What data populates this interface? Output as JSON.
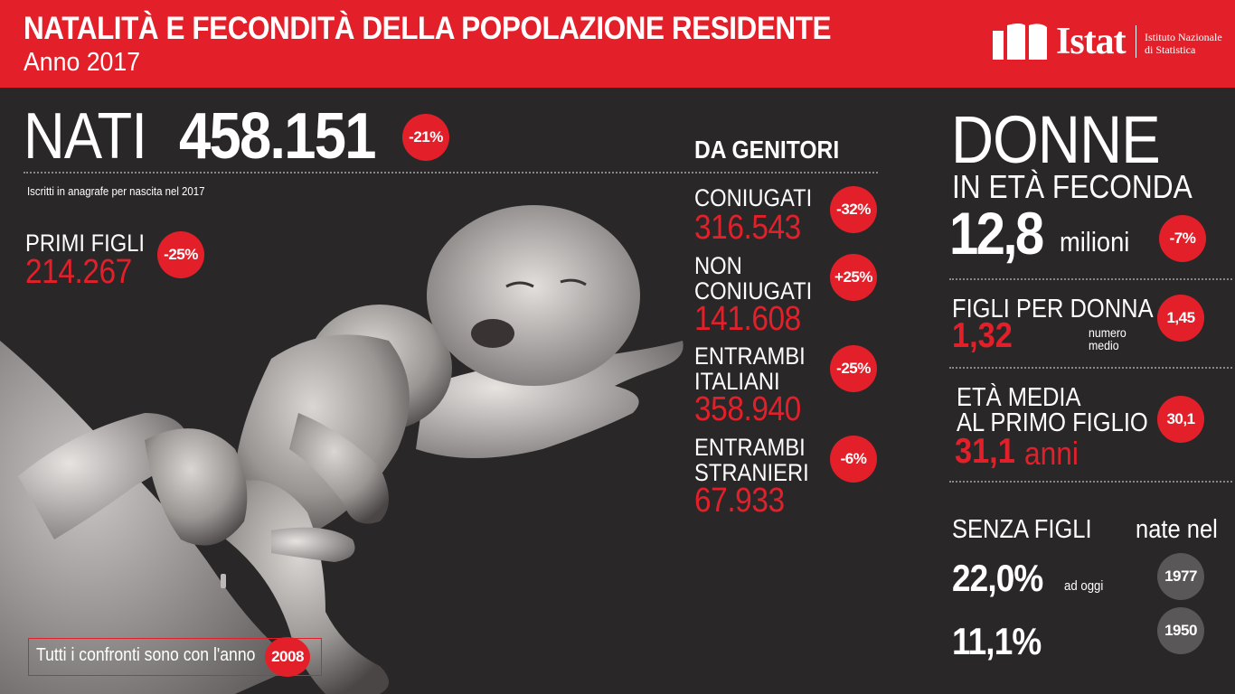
{
  "header": {
    "title": "NATALITÀ E FECONDITÀ DELLA POPOLAZIONE RESIDENTE",
    "subtitle": "Anno 2017"
  },
  "logo": {
    "wordmark": "Istat",
    "name_line1": "Istituto Nazionale",
    "name_line2": "di Statistica"
  },
  "nati": {
    "word": "NATI",
    "value": "458.151",
    "change": "-21%",
    "note": "Iscritti in anagrafe per nascita nel 2017"
  },
  "primi_figli": {
    "label": "PRIMI FIGLI",
    "value": "214.267",
    "change": "-25%"
  },
  "genitori": {
    "title": "DA GENITORI",
    "items": [
      {
        "label_1": "CONIUGATI",
        "label_2": "",
        "value": "316.543",
        "change": "-32%"
      },
      {
        "label_1": "NON",
        "label_2": "CONIUGATI",
        "value": "141.608",
        "change": "+25%"
      },
      {
        "label_1": "ENTRAMBI",
        "label_2": "ITALIANI",
        "value": "358.940",
        "change": "-25%"
      },
      {
        "label_1": "ENTRAMBI",
        "label_2": "STRANIERI",
        "value": "67.933",
        "change": "-6%"
      }
    ]
  },
  "donne": {
    "word": "DONNE",
    "subtitle": "IN ETÀ FECONDA",
    "value": "12,8",
    "unit": "milioni",
    "change": "-7%"
  },
  "figli_per_donna": {
    "label": "FIGLI PER DONNA",
    "value": "1,32",
    "note_1": "numero",
    "note_2": "medio",
    "compare": "1,45"
  },
  "eta_media": {
    "label_1": "ETÀ MEDIA",
    "label_2": "AL PRIMO FIGLIO",
    "value": "31,1",
    "unit": "anni",
    "compare": "30,1"
  },
  "senza_figli": {
    "label": "SENZA FIGLI",
    "nate_nel": "nate nel",
    "rows": [
      {
        "value": "22,0%",
        "note": "ad oggi",
        "year": "1977"
      },
      {
        "value": "11,1%",
        "note": "",
        "year": "1950"
      }
    ]
  },
  "footer": {
    "text": "Tutti i confronti sono con l'anno",
    "year": "2008"
  },
  "colors": {
    "accent": "#e3202a",
    "background": "#2a2728",
    "badge_gray": "#5a5758"
  }
}
